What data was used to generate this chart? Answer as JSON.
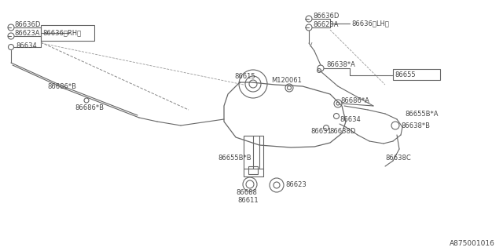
{
  "bg_color": "#ffffff",
  "line_color": "#666666",
  "text_color": "#444444",
  "fig_width": 6.4,
  "fig_height": 3.2,
  "dpi": 100,
  "footer_code": "A875001016",
  "labels": {
    "rh_86636D": "86636D",
    "rh_86623A": "86623A",
    "rh_86636RH": "86636〈RH〉",
    "rh_86634": "86634",
    "rh_86686B_1": "86686*B",
    "rh_86686B_2": "86686*B",
    "lh_86636D": "86636D",
    "lh_86623A": "86623A",
    "lh_86636LH": "86636〈LH〉",
    "lh_86638A": "86638*A",
    "lh_86655": "86655",
    "main_M120061": "M120061",
    "main_86615": "86615",
    "main_86686A": "86686*A",
    "main_86634": "86634",
    "main_86638D": "86638D",
    "main_86655BA": "86655B*A",
    "main_86638B": "86638*B",
    "main_86638C": "86638C",
    "main_86631": "86631",
    "main_86655BB": "86655B*B",
    "main_86611": "86611",
    "main_86688": "86688",
    "main_86623": "86623"
  }
}
